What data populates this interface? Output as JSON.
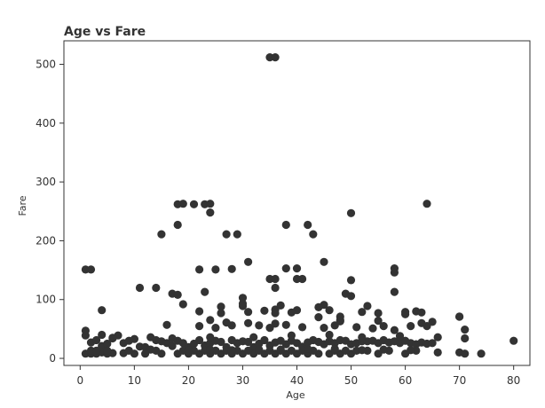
{
  "chart_data": {
    "type": "scatter",
    "title": "Age vs Fare",
    "xlabel": "Age",
    "ylabel": "Fare",
    "xlim": [
      -3,
      83
    ],
    "ylim": [
      -12,
      540
    ],
    "xticks": [
      0,
      10,
      20,
      30,
      40,
      50,
      60,
      70,
      80
    ],
    "yticks": [
      0,
      100,
      200,
      300,
      400,
      500
    ],
    "grid": false,
    "legend": "none",
    "point_color": "#333333",
    "series": [
      {
        "x": [
          35,
          36,
          18,
          19,
          21,
          23,
          24,
          24,
          18,
          38,
          42,
          64,
          50,
          15,
          27,
          29,
          43,
          45,
          35,
          36,
          38,
          40,
          41,
          31,
          36,
          25,
          22,
          58,
          58,
          50,
          49,
          50,
          58,
          28,
          40,
          45,
          30,
          31,
          36,
          37,
          40,
          4,
          1,
          2,
          11,
          14,
          17,
          18,
          19,
          22,
          23,
          26,
          26,
          30,
          30,
          34,
          36,
          39,
          44,
          46,
          48,
          48,
          52,
          53,
          55,
          60,
          60,
          62,
          63,
          65,
          70,
          71,
          16,
          22,
          25,
          28,
          33,
          35,
          38,
          41,
          45,
          47,
          51,
          54,
          56,
          58,
          61,
          64,
          1,
          2,
          3,
          4,
          5,
          6,
          7,
          8,
          9,
          10,
          11,
          12,
          13,
          14,
          15,
          16,
          17,
          18,
          19,
          20,
          21,
          22,
          23,
          24,
          25,
          26,
          27,
          28,
          29,
          30,
          31,
          32,
          33,
          34,
          35,
          36,
          37,
          38,
          39,
          40,
          41,
          42,
          43,
          44,
          45,
          46,
          47,
          48,
          49,
          50,
          51,
          52,
          53,
          54,
          55,
          56,
          57,
          58,
          59,
          60,
          61,
          62,
          63,
          64,
          65,
          66,
          70,
          71,
          74,
          80,
          1,
          2,
          3,
          4,
          5,
          6,
          8,
          10,
          12,
          15,
          18,
          20,
          22,
          24,
          26,
          28,
          30,
          32,
          34,
          36,
          38,
          40,
          42,
          44,
          46,
          48,
          50,
          55,
          60,
          2,
          3,
          5,
          9,
          14,
          19,
          21,
          23,
          25,
          27,
          29,
          31,
          33,
          35,
          37,
          39,
          41,
          43,
          47,
          49,
          51,
          53,
          57,
          62,
          1,
          4,
          6,
          13,
          17,
          24,
          32,
          39,
          46,
          52,
          59,
          66,
          20,
          24,
          28,
          33,
          37,
          42,
          47,
          52,
          56,
          61,
          24,
          27,
          31,
          36,
          44,
          48,
          55,
          63,
          70,
          71
        ],
        "y": [
          512,
          512,
          262,
          263,
          262,
          262,
          263,
          248,
          227,
          227,
          227,
          263,
          247,
          211,
          211,
          211,
          211,
          164,
          135,
          135,
          153,
          153,
          135,
          164,
          120,
          151,
          151,
          153,
          146,
          133,
          110,
          106,
          113,
          152,
          135,
          91,
          89,
          79,
          83,
          90,
          82,
          82,
          151,
          151,
          120,
          120,
          110,
          108,
          92,
          80,
          113,
          77,
          88,
          93,
          103,
          81,
          77,
          78,
          87,
          82,
          71,
          65,
          79,
          89,
          77,
          79,
          75,
          80,
          78,
          62,
          71,
          49,
          57,
          55,
          52,
          56,
          56,
          52,
          57,
          53,
          52,
          56,
          53,
          51,
          55,
          48,
          55,
          55,
          39,
          27,
          31,
          21,
          25,
          34,
          39,
          26,
          30,
          33,
          20,
          19,
          15,
          31,
          29,
          26,
          21,
          30,
          26,
          19,
          25,
          31,
          22,
          26,
          30,
          28,
          19,
          31,
          26,
          29,
          28,
          19,
          25,
          31,
          22,
          27,
          30,
          24,
          30,
          26,
          20,
          27,
          31,
          28,
          24,
          29,
          26,
          31,
          30,
          24,
          26,
          29,
          29,
          30,
          26,
          31,
          27,
          29,
          26,
          30,
          26,
          24,
          27,
          25,
          26,
          10,
          10,
          34,
          8,
          30,
          8,
          8,
          8,
          10,
          8,
          9,
          9,
          8,
          8,
          8,
          8,
          8,
          8,
          8,
          8,
          8,
          8,
          8,
          8,
          8,
          8,
          8,
          8,
          8,
          8,
          8,
          8,
          8,
          8,
          13,
          13,
          13,
          13,
          13,
          13,
          13,
          13,
          13,
          13,
          13,
          13,
          13,
          13,
          13,
          13,
          13,
          13,
          13,
          13,
          13,
          13,
          13,
          13,
          47,
          40,
          35,
          36,
          34,
          36,
          36,
          39,
          40,
          36,
          38,
          36,
          14,
          15,
          14,
          15,
          15,
          16,
          16,
          14,
          15,
          14,
          65,
          61,
          60,
          59,
          70,
          63,
          64,
          60,
          71,
          8
        ]
      }
    ]
  }
}
